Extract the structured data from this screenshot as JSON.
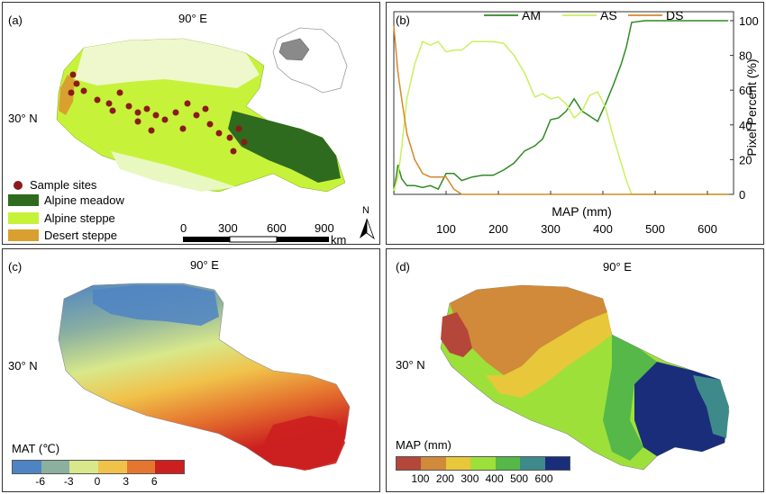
{
  "panels": {
    "a": {
      "label": "(a)",
      "lon_label": "90° E",
      "lat_label": "30° N",
      "legend": [
        {
          "label": "Sample sites",
          "color": "#8b1a1a",
          "kind": "dot"
        },
        {
          "label": "Alpine meadow",
          "color": "#2e6b1e",
          "kind": "swatch"
        },
        {
          "label": "Alpine steppe",
          "color": "#c7f23a",
          "kind": "swatch"
        },
        {
          "label": "Desert steppe",
          "color": "#d9a02f",
          "kind": "swatch"
        }
      ],
      "scale_ticks": [
        "0",
        "300",
        "600",
        "900"
      ],
      "scale_unit": "km",
      "north": "N"
    },
    "b": {
      "label": "(b)",
      "legend": [
        "AM",
        "AS",
        "DS"
      ]
    },
    "c": {
      "label": "(c)",
      "lon_label": "90° E",
      "lat_label": "30° N",
      "colorbar_title": "MAT (℃)",
      "colorbar_colors": [
        "#4f84c4",
        "#8bb0a0",
        "#d8e88a",
        "#f0c24a",
        "#e5762f",
        "#cc1f1f"
      ],
      "colorbar_ticks": [
        "-6",
        "-3",
        "0",
        "3",
        "6"
      ]
    },
    "d": {
      "label": "(d)",
      "lon_label": "90° E",
      "lat_label": "30° N",
      "colorbar_title": "MAP (mm)",
      "colorbar_colors": [
        "#b5473a",
        "#d08a3a",
        "#e8c73a",
        "#9ee03a",
        "#55b848",
        "#3e8a8a",
        "#1a2d7a"
      ],
      "colorbar_ticks": [
        "100",
        "200",
        "300",
        "400",
        "500",
        "600"
      ]
    }
  },
  "chart_data": {
    "type": "line",
    "xlabel": "MAP (mm)",
    "ylabel": "Pixel Percent (%)",
    "xlim": [
      0,
      650
    ],
    "ylim": [
      0,
      100
    ],
    "xticks": [
      100,
      200,
      300,
      400,
      500,
      600
    ],
    "yticks": [
      0,
      20,
      40,
      60,
      80,
      100
    ],
    "grid": false,
    "legend_position": "top",
    "series": [
      {
        "name": "AM",
        "color": "#2f8a22",
        "x": [
          0,
          8,
          15,
          25,
          40,
          55,
          70,
          85,
          100,
          115,
          130,
          150,
          170,
          190,
          210,
          230,
          250,
          270,
          285,
          300,
          315,
          330,
          345,
          360,
          375,
          390,
          405,
          420,
          435,
          445,
          455,
          480,
          520,
          560,
          600,
          640
        ],
        "y": [
          1,
          17,
          9,
          5,
          5,
          4,
          5,
          3,
          12,
          12,
          8,
          10,
          11,
          11,
          14,
          18,
          25,
          28,
          32,
          43,
          44,
          48,
          55,
          48,
          45,
          42,
          52,
          63,
          75,
          85,
          99,
          100,
          100,
          100,
          100,
          100
        ]
      },
      {
        "name": "AS",
        "color": "#c8f060",
        "x": [
          0,
          8,
          15,
          25,
          40,
          55,
          70,
          85,
          100,
          115,
          130,
          150,
          170,
          190,
          210,
          230,
          250,
          270,
          285,
          300,
          315,
          330,
          345,
          360,
          375,
          390,
          405,
          420,
          435,
          445,
          455,
          480,
          520,
          560,
          600,
          640
        ],
        "y": [
          2,
          10,
          27,
          55,
          75,
          88,
          86,
          88,
          82,
          83,
          83,
          88,
          88,
          88,
          87,
          80,
          70,
          56,
          58,
          55,
          56,
          52,
          44,
          48,
          57,
          59,
          50,
          33,
          18,
          8,
          0,
          0,
          0,
          0,
          0,
          0
        ]
      },
      {
        "name": "DS",
        "color": "#d48a2c",
        "x": [
          0,
          8,
          15,
          25,
          40,
          55,
          70,
          85,
          100,
          115,
          130,
          150,
          170,
          190,
          210,
          230,
          250,
          270,
          285,
          300,
          315,
          330,
          345,
          360,
          375,
          390,
          405,
          420,
          435,
          445,
          455,
          480,
          520,
          560,
          600,
          640
        ],
        "y": [
          97,
          70,
          55,
          35,
          20,
          12,
          10,
          10,
          10,
          3,
          0,
          0,
          0,
          0,
          0,
          0,
          0,
          0,
          0,
          0,
          0,
          0,
          0,
          0,
          0,
          0,
          0,
          0,
          0,
          0,
          0,
          0,
          0,
          0,
          0,
          0
        ]
      }
    ]
  }
}
